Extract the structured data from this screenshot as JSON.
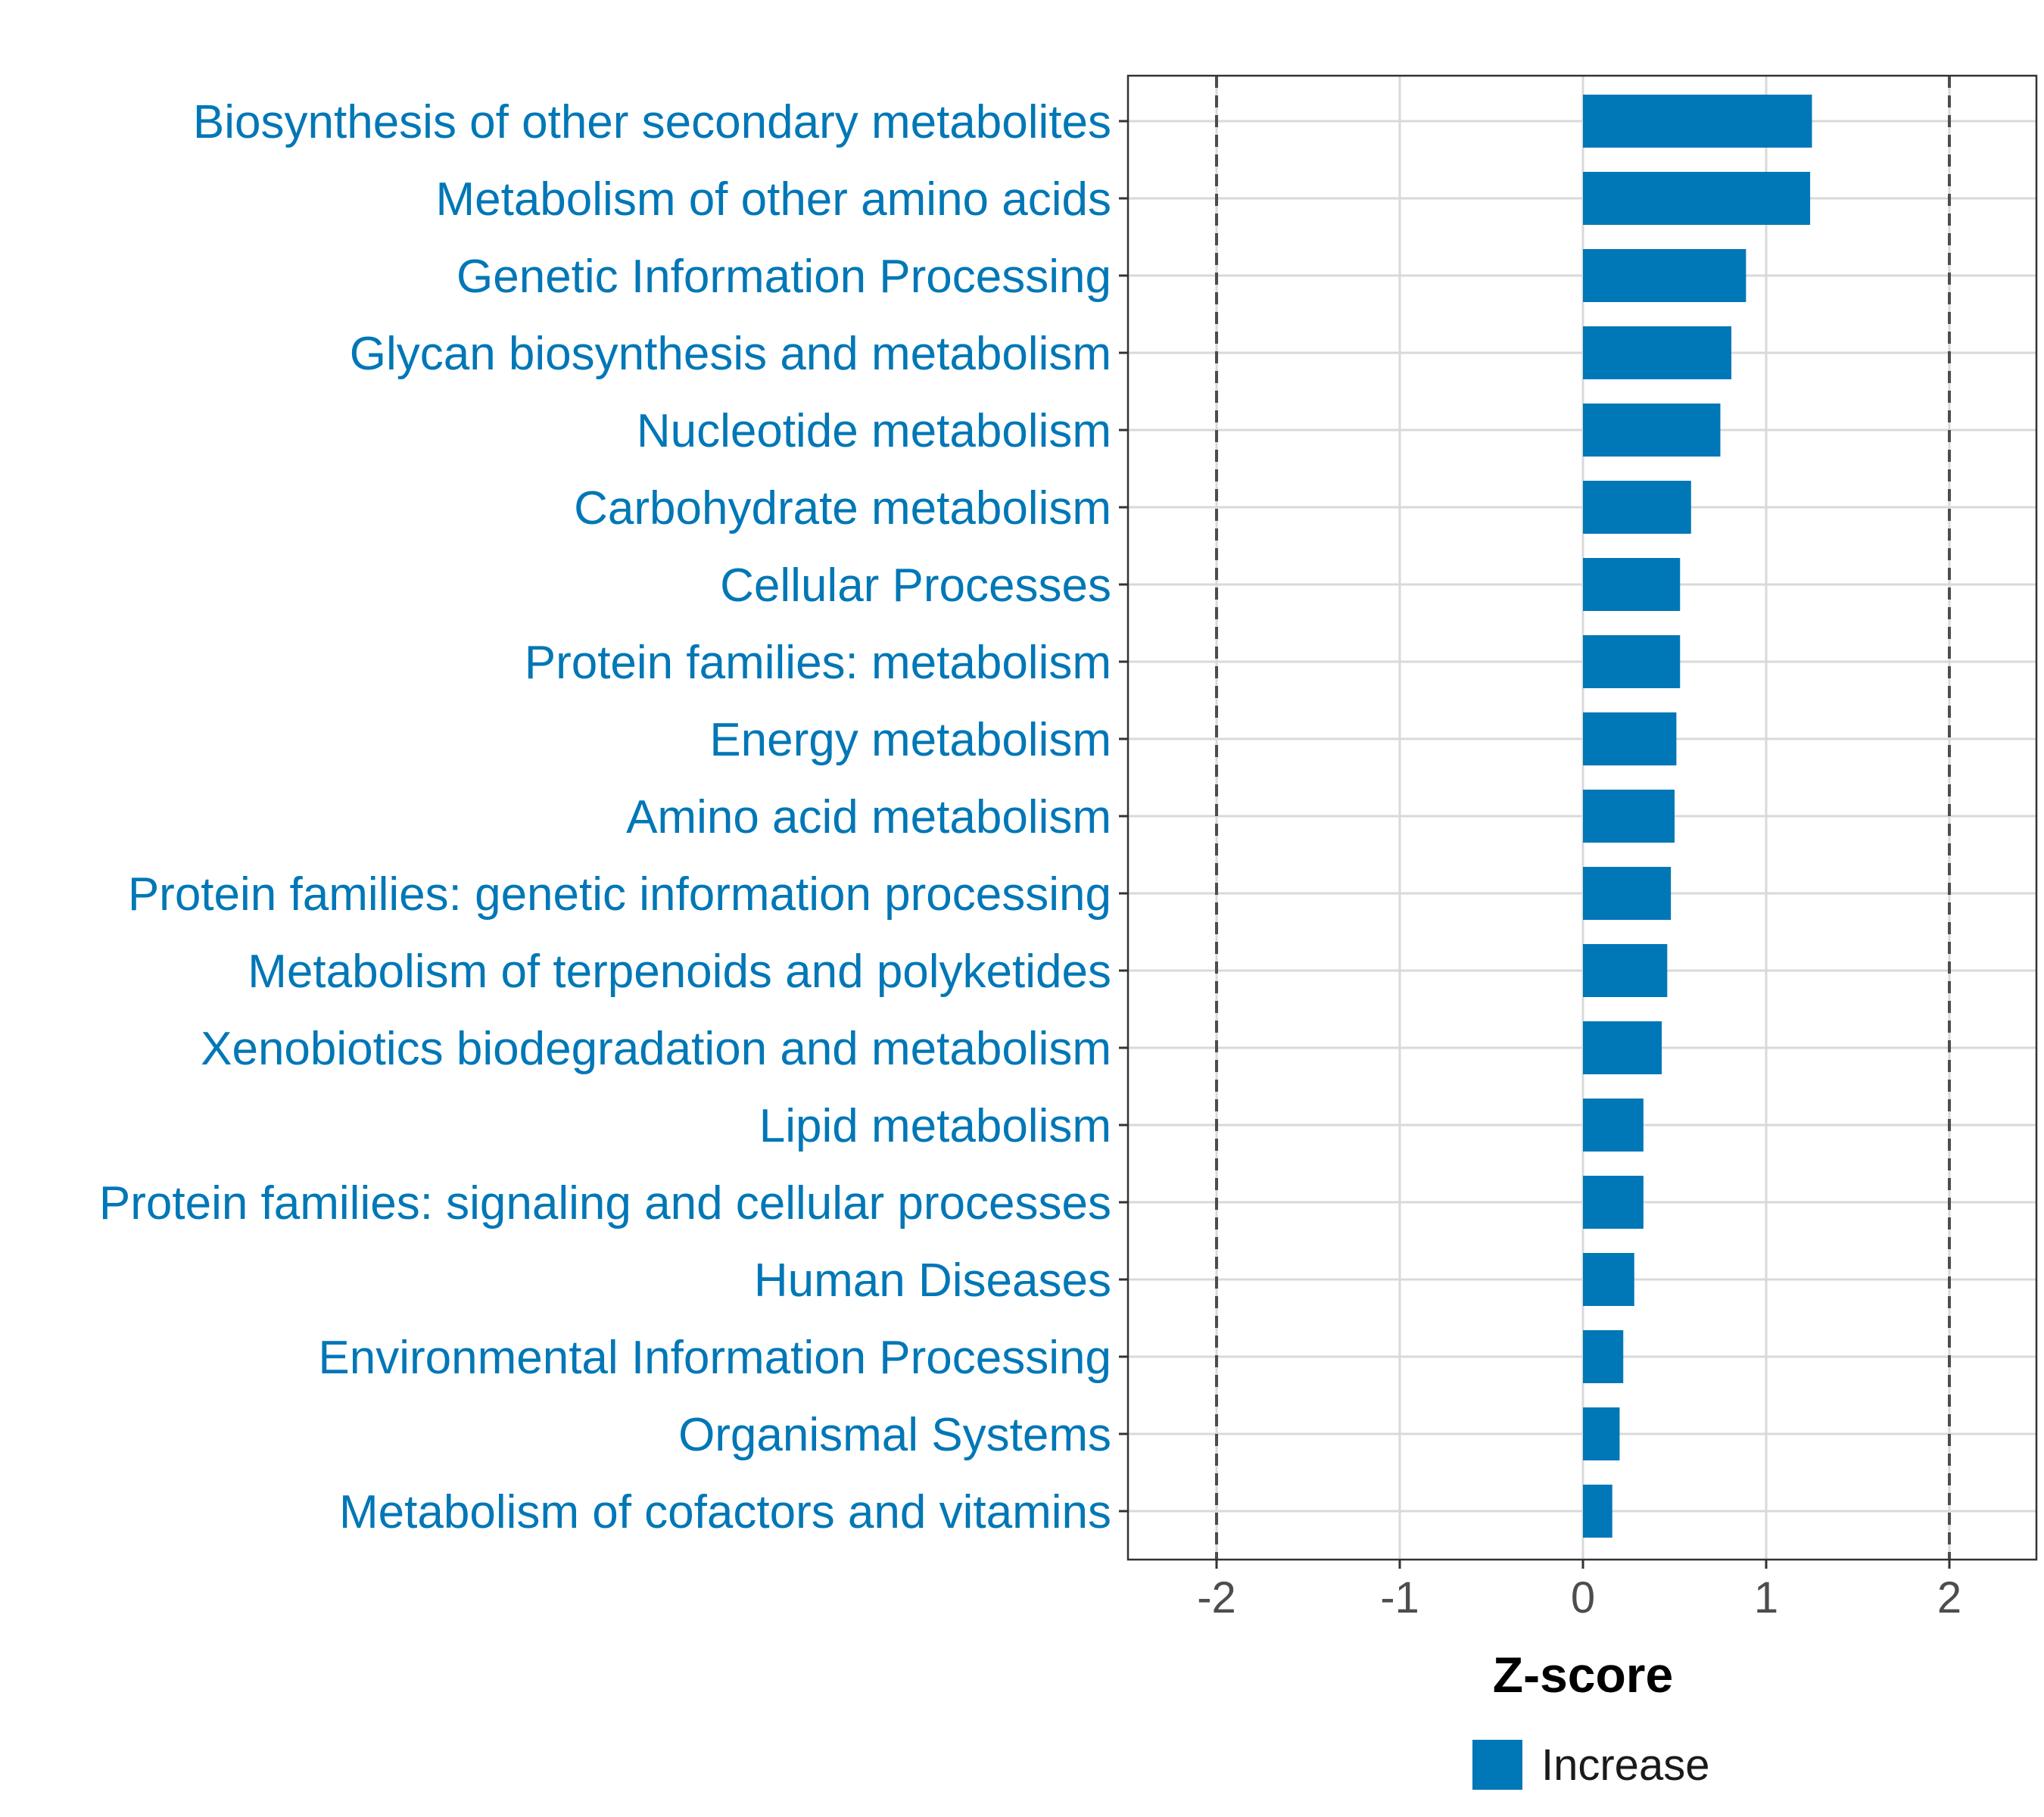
{
  "chart_data": {
    "type": "bar",
    "orientation": "horizontal",
    "categories": [
      "Biosynthesis of other secondary metabolites",
      "Metabolism of other amino acids",
      "Genetic Information Processing",
      "Glycan biosynthesis and metabolism",
      "Nucleotide metabolism",
      "Carbohydrate metabolism",
      "Cellular Processes",
      "Protein families: metabolism",
      "Energy metabolism",
      "Amino acid metabolism",
      "Protein families: genetic information processing",
      "Metabolism of terpenoids and polyketides",
      "Xenobiotics biodegradation and metabolism",
      "Lipid metabolism",
      "Protein families: signaling and cellular processes",
      "Human Diseases",
      "Environmental Information Processing",
      "Organismal Systems",
      "Metabolism of cofactors and vitamins"
    ],
    "values": [
      1.25,
      1.24,
      0.89,
      0.81,
      0.75,
      0.59,
      0.53,
      0.53,
      0.51,
      0.5,
      0.48,
      0.46,
      0.43,
      0.33,
      0.33,
      0.28,
      0.22,
      0.2,
      0.16
    ],
    "xlabel": "Z-score",
    "ylabel": "",
    "xlim": [
      -2.48,
      2.48
    ],
    "xticks": [
      "-2",
      "-1",
      "0",
      "1",
      "2"
    ],
    "xtick_values": [
      -2,
      -1,
      0,
      1,
      2
    ],
    "reference_lines": [
      -2,
      2
    ],
    "grid": true,
    "legend": {
      "position": "bottom",
      "entries": [
        "Increase"
      ]
    },
    "colors": {
      "bar": "#0077b6",
      "label": "#0077b6",
      "reference_line": "#4d4d4d",
      "grid": "#d9d9d9"
    }
  }
}
